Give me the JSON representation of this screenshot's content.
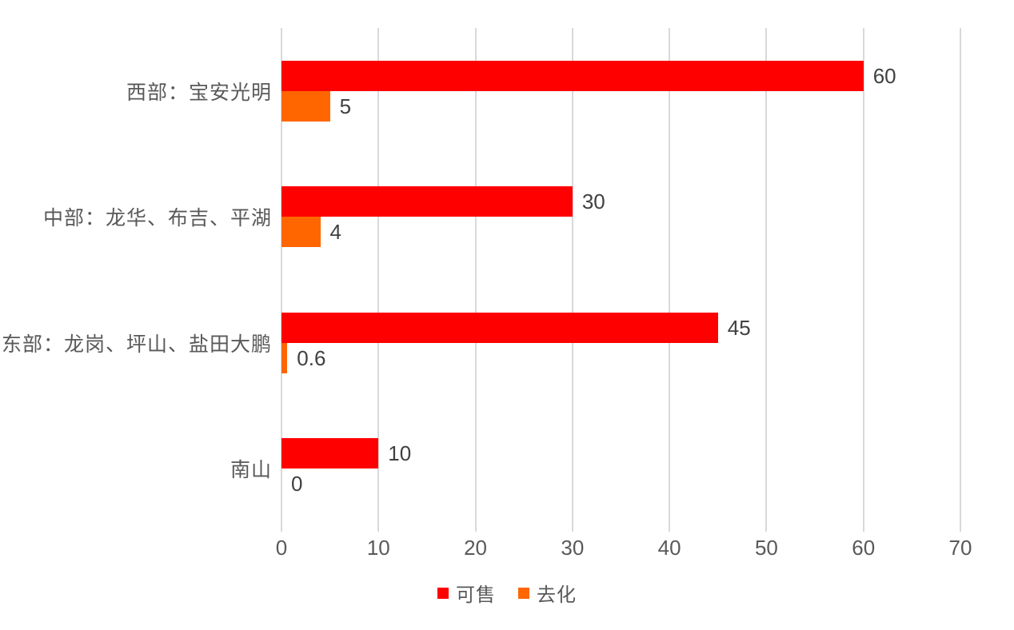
{
  "chart_data": {
    "type": "bar",
    "orientation": "horizontal",
    "title": "",
    "xlabel": "",
    "ylabel": "",
    "categories": [
      "西部：宝安光明",
      "中部：龙华、布吉、平湖",
      "东部：龙岗、坪山、盐田大鹏",
      "南山"
    ],
    "series": [
      {
        "name": "可售",
        "color": "#ff0000",
        "values": [
          60,
          30,
          45,
          10
        ],
        "labels": [
          "60",
          "30",
          "45",
          "10"
        ]
      },
      {
        "name": "去化",
        "color": "#ff6600",
        "values": [
          5,
          4,
          0.6,
          0
        ],
        "labels": [
          "5",
          "4",
          "0.6",
          "0"
        ]
      }
    ],
    "xlim": [
      0,
      70
    ],
    "xticks": [
      0,
      10,
      20,
      30,
      40,
      50,
      60,
      70
    ],
    "grid": "vertical",
    "data_labels": true,
    "legend_position": "bottom"
  },
  "colors": {
    "background": "#ffffff",
    "gridline": "#d9d9d9",
    "tick_text": "#595959",
    "category_text": "#595959",
    "data_label_text": "#404040"
  }
}
